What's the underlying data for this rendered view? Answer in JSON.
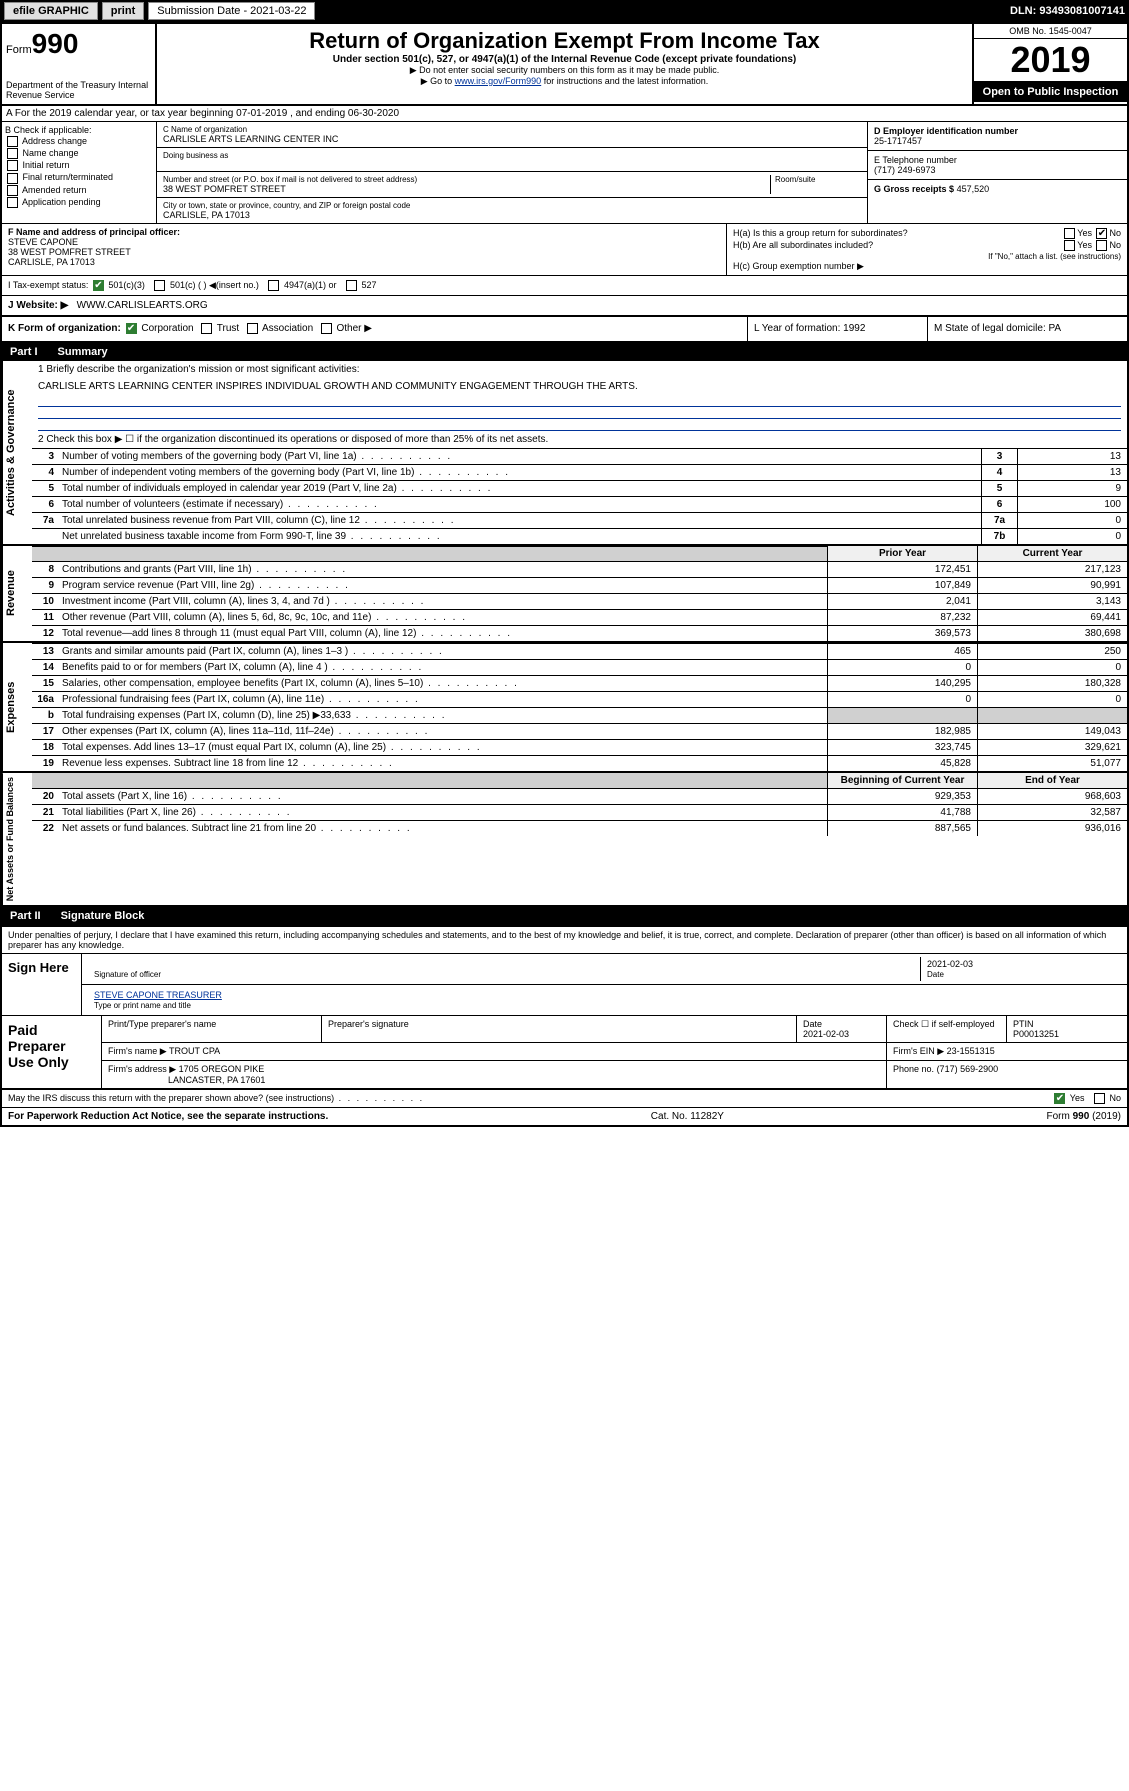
{
  "topbar": {
    "efile": "efile GRAPHIC",
    "print": "print",
    "submission_label": "Submission Date - 2021-03-22",
    "dln": "DLN: 93493081007141"
  },
  "header": {
    "form_prefix": "Form",
    "form_num": "990",
    "dept": "Department of the Treasury Internal Revenue Service",
    "title": "Return of Organization Exempt From Income Tax",
    "subtitle": "Under section 501(c), 527, or 4947(a)(1) of the Internal Revenue Code (except private foundations)",
    "note1": "▶ Do not enter social security numbers on this form as it may be made public.",
    "note2_pre": "▶ Go to ",
    "note2_link": "www.irs.gov/Form990",
    "note2_post": " for instructions and the latest information.",
    "omb": "OMB No. 1545-0047",
    "year": "2019",
    "open": "Open to Public Inspection"
  },
  "rowA": "A For the 2019 calendar year, or tax year beginning 07-01-2019    , and ending 06-30-2020",
  "colB": {
    "title": "B Check if applicable:",
    "items": [
      "Address change",
      "Name change",
      "Initial return",
      "Final return/terminated",
      "Amended return",
      "Application pending"
    ]
  },
  "colC": {
    "name_label": "C Name of organization",
    "name": "CARLISLE ARTS LEARNING CENTER INC",
    "dba_label": "Doing business as",
    "addr_label": "Number and street (or P.O. box if mail is not delivered to street address)",
    "room_label": "Room/suite",
    "addr": "38 WEST POMFRET STREET",
    "city_label": "City or town, state or province, country, and ZIP or foreign postal code",
    "city": "CARLISLE, PA  17013"
  },
  "colD": {
    "ein_label": "D Employer identification number",
    "ein": "25-1717457",
    "phone_label": "E Telephone number",
    "phone": "(717) 249-6973",
    "gross_label": "G Gross receipts $",
    "gross": "457,520"
  },
  "colF": {
    "label": "F  Name and address of principal officer:",
    "name": "STEVE CAPONE",
    "addr1": "38 WEST POMFRET STREET",
    "addr2": "CARLISLE, PA  17013"
  },
  "colH": {
    "ha": "H(a)  Is this a group return for subordinates?",
    "hb": "H(b)  Are all subordinates included?",
    "hb_note": "If \"No,\" attach a list. (see instructions)",
    "hc": "H(c)  Group exemption number ▶"
  },
  "rowI": {
    "label": "I     Tax-exempt status:",
    "opts": [
      "501(c)(3)",
      "501(c) (  ) ◀(insert no.)",
      "4947(a)(1) or",
      "527"
    ]
  },
  "rowJ": {
    "label": "J     Website: ▶",
    "value": "WWW.CARLISLEARTS.ORG"
  },
  "rowK": {
    "label": "K Form of organization:",
    "opts": [
      "Corporation",
      "Trust",
      "Association",
      "Other ▶"
    ],
    "L": "L Year of formation: 1992",
    "M": "M State of legal domicile: PA"
  },
  "part1": {
    "num": "Part I",
    "title": "Summary"
  },
  "governance": {
    "label": "Activities & Governance",
    "l1": "1  Briefly describe the organization's mission or most significant activities:",
    "mission": "CARLISLE ARTS LEARNING CENTER INSPIRES INDIVIDUAL GROWTH AND COMMUNITY ENGAGEMENT THROUGH THE ARTS.",
    "l2": "2    Check this box ▶ ☐  if the organization discontinued its operations or disposed of more than 25% of its net assets.",
    "rows": [
      {
        "n": "3",
        "t": "Number of voting members of the governing body (Part VI, line 1a)",
        "box": "3",
        "v": "13"
      },
      {
        "n": "4",
        "t": "Number of independent voting members of the governing body (Part VI, line 1b)",
        "box": "4",
        "v": "13"
      },
      {
        "n": "5",
        "t": "Total number of individuals employed in calendar year 2019 (Part V, line 2a)",
        "box": "5",
        "v": "9"
      },
      {
        "n": "6",
        "t": "Total number of volunteers (estimate if necessary)",
        "box": "6",
        "v": "100"
      },
      {
        "n": "7a",
        "t": "Total unrelated business revenue from Part VIII, column (C), line 12",
        "box": "7a",
        "v": "0"
      },
      {
        "n": "",
        "t": "Net unrelated business taxable income from Form 990-T, line 39",
        "box": "7b",
        "v": "0"
      }
    ]
  },
  "yearHeaders": {
    "prior": "Prior Year",
    "current": "Current Year"
  },
  "revenue": {
    "label": "Revenue",
    "rows": [
      {
        "n": "8",
        "t": "Contributions and grants (Part VIII, line 1h)",
        "p": "172,451",
        "c": "217,123"
      },
      {
        "n": "9",
        "t": "Program service revenue (Part VIII, line 2g)",
        "p": "107,849",
        "c": "90,991"
      },
      {
        "n": "10",
        "t": "Investment income (Part VIII, column (A), lines 3, 4, and 7d )",
        "p": "2,041",
        "c": "3,143"
      },
      {
        "n": "11",
        "t": "Other revenue (Part VIII, column (A), lines 5, 6d, 8c, 9c, 10c, and 11e)",
        "p": "87,232",
        "c": "69,441"
      },
      {
        "n": "12",
        "t": "Total revenue—add lines 8 through 11 (must equal Part VIII, column (A), line 12)",
        "p": "369,573",
        "c": "380,698"
      }
    ]
  },
  "expenses": {
    "label": "Expenses",
    "rows": [
      {
        "n": "13",
        "t": "Grants and similar amounts paid (Part IX, column (A), lines 1–3 )",
        "p": "465",
        "c": "250"
      },
      {
        "n": "14",
        "t": "Benefits paid to or for members (Part IX, column (A), line 4 )",
        "p": "0",
        "c": "0"
      },
      {
        "n": "15",
        "t": "Salaries, other compensation, employee benefits (Part IX, column (A), lines 5–10)",
        "p": "140,295",
        "c": "180,328"
      },
      {
        "n": "16a",
        "t": "Professional fundraising fees (Part IX, column (A), line 11e)",
        "p": "0",
        "c": "0"
      },
      {
        "n": "b",
        "t": "Total fundraising expenses (Part IX, column (D), line 25) ▶33,633",
        "p": "",
        "c": "",
        "shaded": true
      },
      {
        "n": "17",
        "t": "Other expenses (Part IX, column (A), lines 11a–11d, 11f–24e)",
        "p": "182,985",
        "c": "149,043"
      },
      {
        "n": "18",
        "t": "Total expenses. Add lines 13–17 (must equal Part IX, column (A), line 25)",
        "p": "323,745",
        "c": "329,621"
      },
      {
        "n": "19",
        "t": "Revenue less expenses. Subtract line 18 from line 12",
        "p": "45,828",
        "c": "51,077"
      }
    ]
  },
  "netHeaders": {
    "begin": "Beginning of Current Year",
    "end": "End of Year"
  },
  "netassets": {
    "label": "Net Assets or Fund Balances",
    "rows": [
      {
        "n": "20",
        "t": "Total assets (Part X, line 16)",
        "p": "929,353",
        "c": "968,603"
      },
      {
        "n": "21",
        "t": "Total liabilities (Part X, line 26)",
        "p": "41,788",
        "c": "32,587"
      },
      {
        "n": "22",
        "t": "Net assets or fund balances. Subtract line 21 from line 20",
        "p": "887,565",
        "c": "936,016"
      }
    ]
  },
  "part2": {
    "num": "Part II",
    "title": "Signature Block"
  },
  "sig": {
    "decl": "Under penalties of perjury, I declare that I have examined this return, including accompanying schedules and statements, and to the best of my knowledge and belief, it is true, correct, and complete. Declaration of preparer (other than officer) is based on all information of which preparer has any knowledge.",
    "sign_here": "Sign Here",
    "sig_officer": "Signature of officer",
    "date1": "2021-02-03",
    "date_label": "Date",
    "name_title": "STEVE CAPONE  TREASURER",
    "name_title_label": "Type or print name and title"
  },
  "paid": {
    "label": "Paid Preparer Use Only",
    "preparer_name_label": "Print/Type preparer's name",
    "preparer_sig_label": "Preparer's signature",
    "date_label": "Date",
    "date": "2021-02-03",
    "check_label": "Check ☐ if self-employed",
    "ptin_label": "PTIN",
    "ptin": "P00013251",
    "firm_name_label": "Firm's name    ▶",
    "firm_name": "TROUT CPA",
    "firm_ein_label": "Firm's EIN ▶",
    "firm_ein": "23-1551315",
    "firm_addr_label": "Firm's address ▶",
    "firm_addr1": "1705 OREGON PIKE",
    "firm_addr2": "LANCASTER, PA  17601",
    "phone_label": "Phone no.",
    "phone": "(717) 569-2900"
  },
  "footer": {
    "discuss": "May the IRS discuss this return with the preparer shown above? (see instructions)",
    "paperwork": "For Paperwork Reduction Act Notice, see the separate instructions.",
    "cat": "Cat. No. 11282Y",
    "form": "Form 990 (2019)"
  }
}
